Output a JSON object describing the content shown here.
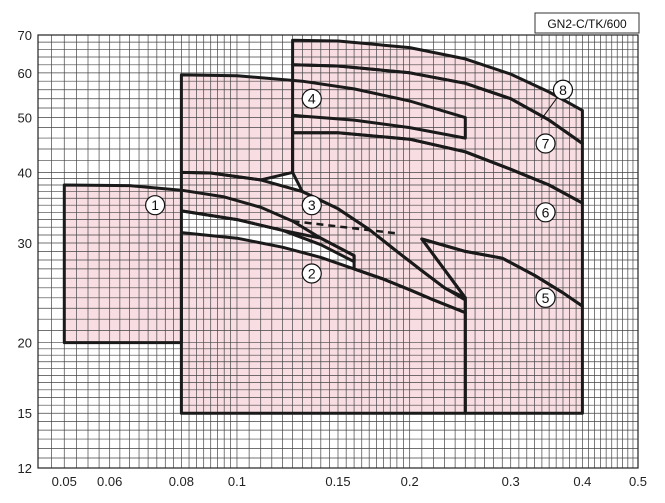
{
  "chart_data": {
    "type": "area",
    "title": "",
    "model_label": "GN2-C/TK/600",
    "xlabel": "",
    "ylabel": "",
    "x_scale": "log",
    "y_scale": "log",
    "xlim": [
      0.045,
      0.5
    ],
    "ylim": [
      12,
      70
    ],
    "grid": true,
    "x_ticks": [
      {
        "value": 0.05,
        "label": "0.05"
      },
      {
        "value": 0.06,
        "label": "0.06"
      },
      {
        "value": 0.08,
        "label": "0.08"
      },
      {
        "value": 0.1,
        "label": "0.1"
      },
      {
        "value": 0.15,
        "label": "0.15"
      },
      {
        "value": 0.2,
        "label": "0.2"
      },
      {
        "value": 0.3,
        "label": "0.3"
      },
      {
        "value": 0.4,
        "label": "0.4"
      },
      {
        "value": 0.5,
        "label": "0.5"
      }
    ],
    "y_ticks": [
      {
        "value": 12,
        "label": "12"
      },
      {
        "value": 15,
        "label": "15"
      },
      {
        "value": 20,
        "label": "20"
      },
      {
        "value": 30,
        "label": "30"
      },
      {
        "value": 40,
        "label": "40"
      },
      {
        "value": 50,
        "label": "50"
      },
      {
        "value": 60,
        "label": "60"
      },
      {
        "value": 70,
        "label": "70"
      }
    ],
    "fill_color": "#f8dde2",
    "line_color": "#1a1a1a",
    "regions": [
      {
        "id": "1",
        "label_at": [
          0.072,
          35
        ],
        "polygon": [
          [
            0.05,
            20
          ],
          [
            0.05,
            38
          ],
          [
            0.065,
            37.9
          ],
          [
            0.08,
            37.2
          ],
          [
            0.095,
            36.2
          ],
          [
            0.11,
            34.7
          ],
          [
            0.125,
            32.8
          ],
          [
            0.14,
            30.6
          ],
          [
            0.16,
            28.5
          ],
          [
            0.16,
            27.8
          ],
          [
            0.14,
            29.8
          ],
          [
            0.12,
            31.6
          ],
          [
            0.1,
            33
          ],
          [
            0.08,
            34.2
          ],
          [
            0.08,
            20
          ]
        ]
      },
      {
        "id": "2",
        "label_at": [
          0.135,
          26.5
        ],
        "polygon": [
          [
            0.08,
            15
          ],
          [
            0.08,
            31.3
          ],
          [
            0.1,
            30.6
          ],
          [
            0.12,
            29.5
          ],
          [
            0.14,
            28.3
          ],
          [
            0.16,
            27
          ],
          [
            0.18,
            25.9
          ],
          [
            0.2,
            24.8
          ],
          [
            0.22,
            23.8
          ],
          [
            0.25,
            22.6
          ],
          [
            0.25,
            15
          ]
        ]
      },
      {
        "id": "3",
        "label_at": [
          0.135,
          35
        ],
        "polygon": [
          [
            0.08,
            34.2
          ],
          [
            0.08,
            40
          ],
          [
            0.09,
            39.9
          ],
          [
            0.11,
            38.8
          ],
          [
            0.13,
            37
          ],
          [
            0.15,
            34.5
          ],
          [
            0.17,
            31.7
          ],
          [
            0.19,
            29
          ],
          [
            0.21,
            26.8
          ],
          [
            0.23,
            25
          ],
          [
            0.25,
            23.8
          ],
          [
            0.25,
            22.6
          ],
          [
            0.22,
            23.8
          ],
          [
            0.2,
            24.8
          ],
          [
            0.18,
            25.9
          ],
          [
            0.16,
            27
          ],
          [
            0.16,
            28.5
          ],
          [
            0.14,
            30.6
          ],
          [
            0.12,
            31.6
          ],
          [
            0.1,
            33
          ]
        ]
      },
      {
        "id": "4",
        "label_at": [
          0.135,
          54
        ],
        "polygon": [
          [
            0.08,
            40
          ],
          [
            0.08,
            59.5
          ],
          [
            0.1,
            59.3
          ],
          [
            0.13,
            58
          ],
          [
            0.16,
            56.2
          ],
          [
            0.2,
            53.5
          ],
          [
            0.25,
            50
          ],
          [
            0.25,
            46
          ],
          [
            0.2,
            48
          ],
          [
            0.16,
            49.5
          ],
          [
            0.13,
            50.3
          ],
          [
            0.125,
            50.5
          ],
          [
            0.125,
            47
          ],
          [
            0.125,
            40
          ],
          [
            0.11,
            38.8
          ],
          [
            0.09,
            39.9
          ]
        ]
      },
      {
        "id": "5",
        "label_at": [
          0.345,
          24
        ],
        "polygon": [
          [
            0.25,
            15
          ],
          [
            0.25,
            24
          ],
          [
            0.21,
            30.5
          ],
          [
            0.25,
            29
          ],
          [
            0.29,
            28.2
          ],
          [
            0.33,
            26.3
          ],
          [
            0.37,
            24.5
          ],
          [
            0.4,
            23.2
          ],
          [
            0.4,
            15
          ]
        ]
      },
      {
        "id": "6",
        "label_at": [
          0.345,
          34
        ],
        "polygon": [
          [
            0.125,
            40
          ],
          [
            0.125,
            47
          ],
          [
            0.15,
            47
          ],
          [
            0.2,
            45.8
          ],
          [
            0.25,
            43.5
          ],
          [
            0.3,
            40.5
          ],
          [
            0.35,
            38
          ],
          [
            0.4,
            35.3
          ],
          [
            0.4,
            23.2
          ],
          [
            0.37,
            24.5
          ],
          [
            0.33,
            26.3
          ],
          [
            0.29,
            28.2
          ],
          [
            0.25,
            29
          ],
          [
            0.21,
            30.5
          ],
          [
            0.25,
            24
          ],
          [
            0.23,
            25
          ],
          [
            0.21,
            26.8
          ],
          [
            0.19,
            29
          ],
          [
            0.17,
            31.7
          ],
          [
            0.15,
            34.5
          ],
          [
            0.13,
            37
          ]
        ]
      },
      {
        "id": "7",
        "label_at": [
          0.345,
          45
        ],
        "polygon": [
          [
            0.125,
            47
          ],
          [
            0.125,
            62
          ],
          [
            0.15,
            61.7
          ],
          [
            0.2,
            60
          ],
          [
            0.25,
            57.5
          ],
          [
            0.3,
            54
          ],
          [
            0.35,
            49.5
          ],
          [
            0.4,
            45
          ],
          [
            0.4,
            35.3
          ],
          [
            0.35,
            38
          ],
          [
            0.3,
            40.5
          ],
          [
            0.25,
            43.5
          ],
          [
            0.2,
            45.8
          ],
          [
            0.15,
            47
          ]
        ]
      },
      {
        "id": "8",
        "label_at": [
          0.37,
          56
        ],
        "polygon": [
          [
            0.125,
            62
          ],
          [
            0.125,
            68.5
          ],
          [
            0.15,
            68.3
          ],
          [
            0.2,
            66.5
          ],
          [
            0.25,
            63.5
          ],
          [
            0.3,
            59.7
          ],
          [
            0.35,
            55.5
          ],
          [
            0.4,
            51.5
          ],
          [
            0.4,
            45
          ],
          [
            0.35,
            49.5
          ],
          [
            0.3,
            54
          ],
          [
            0.25,
            57.5
          ],
          [
            0.2,
            60
          ],
          [
            0.15,
            61.7
          ]
        ]
      }
    ],
    "dashed_segment": [
      [
        0.125,
        32.8
      ],
      [
        0.19,
        31.2
      ]
    ]
  }
}
